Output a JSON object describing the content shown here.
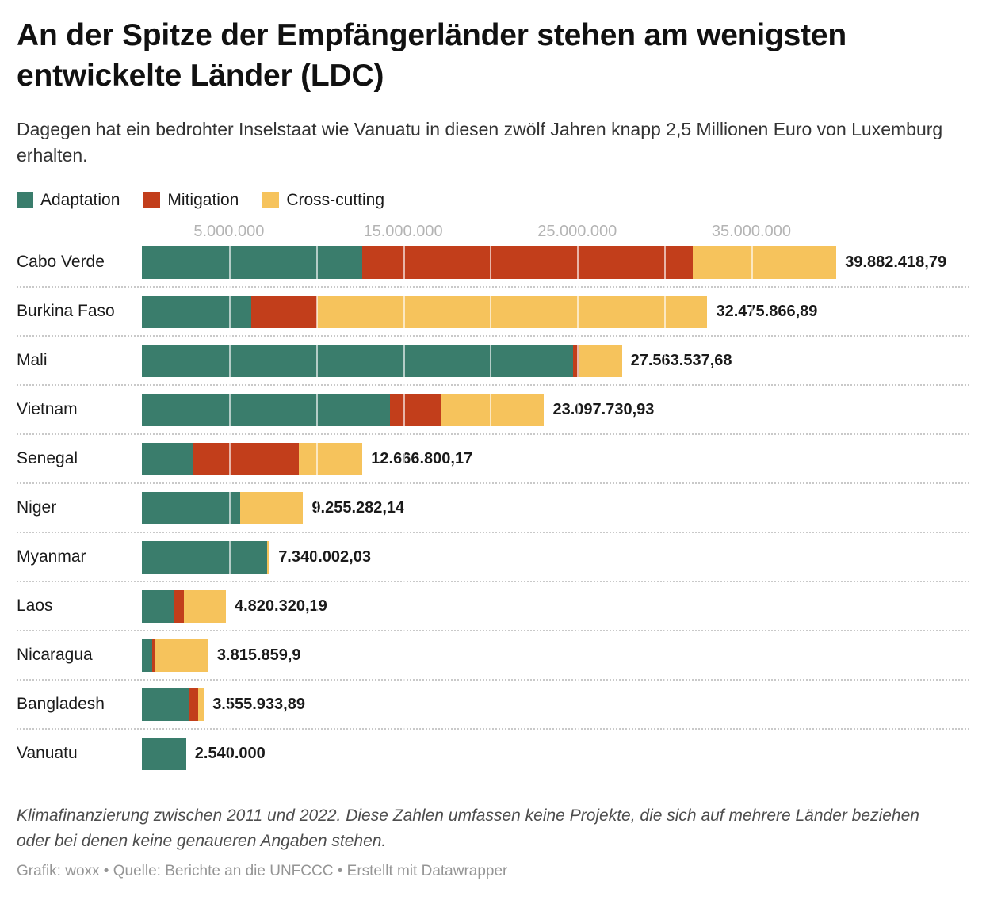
{
  "header": {
    "title": "An der Spitze der Empfängerländer stehen am wenigsten entwickelte Länder (LDC)",
    "subtitle": "Dagegen hat ein bedrohter Inselstaat wie Vanuatu in diesen zwölf Jahren knapp 2,5 Millionen Euro von Luxemburg erhalten."
  },
  "legend": {
    "items": [
      {
        "id": "adaptation",
        "label": "Adaptation",
        "color": "#3A7D6C"
      },
      {
        "id": "mitigation",
        "label": "Mitigation",
        "color": "#C23E1B"
      },
      {
        "id": "cross_cutting",
        "label": "Cross-cutting",
        "color": "#F6C35C"
      }
    ]
  },
  "chart_data": {
    "type": "bar",
    "stacked": true,
    "orientation": "horizontal",
    "value_unit": "Euro",
    "xlim": [
      0,
      41500000
    ],
    "grid": true,
    "axis_ticks": [
      {
        "value": 5000000,
        "label": "5.000.000"
      },
      {
        "value": 15000000,
        "label": "15.000.000"
      },
      {
        "value": 25000000,
        "label": "25.000.000"
      },
      {
        "value": 35000000,
        "label": "35.000.000"
      }
    ],
    "gridline_values": [
      5000000,
      10000000,
      15000000,
      20000000,
      25000000,
      30000000,
      35000000,
      40000000
    ],
    "series_names": [
      "Adaptation",
      "Mitigation",
      "Cross-cutting"
    ],
    "rows": [
      {
        "country": "Cabo Verde",
        "total": 39882418.79,
        "total_label": "39.882.418,79",
        "values": {
          "adaptation": 12650000,
          "mitigation": 18980000,
          "cross_cutting": 8252418.79
        }
      },
      {
        "country": "Burkina Faso",
        "total": 32475866.89,
        "total_label": "32.475.866,89",
        "values": {
          "adaptation": 6280000,
          "mitigation": 3760000,
          "cross_cutting": 22435866.89
        }
      },
      {
        "country": "Mali",
        "total": 27563537.68,
        "total_label": "27.563.537,68",
        "values": {
          "adaptation": 24760000,
          "mitigation": 370000,
          "cross_cutting": 2433537.68
        }
      },
      {
        "country": "Vietnam",
        "total": 23097730.93,
        "total_label": "23.097.730,93",
        "values": {
          "adaptation": 14240000,
          "mitigation": 2950000,
          "cross_cutting": 5907730.93
        }
      },
      {
        "country": "Senegal",
        "total": 12666800.17,
        "total_label": "12.666.800,17",
        "values": {
          "adaptation": 2890000,
          "mitigation": 6100000,
          "cross_cutting": 3676800.17
        }
      },
      {
        "country": "Niger",
        "total": 9255282.14,
        "total_label": "9.255.282,14",
        "values": {
          "adaptation": 5620000,
          "mitigation": 0,
          "cross_cutting": 3635282.14
        }
      },
      {
        "country": "Myanmar",
        "total": 7340002.03,
        "total_label": "7.340.002,03",
        "values": {
          "adaptation": 7180000,
          "mitigation": 0,
          "cross_cutting": 160002.03
        }
      },
      {
        "country": "Laos",
        "total": 4820320.19,
        "total_label": "4.820.320,19",
        "values": {
          "adaptation": 1810000,
          "mitigation": 600000,
          "cross_cutting": 2410320.19
        }
      },
      {
        "country": "Nicaragua",
        "total": 3815859.9,
        "total_label": "3.815.859,9",
        "values": {
          "adaptation": 590000,
          "mitigation": 140000,
          "cross_cutting": 3085859.9
        }
      },
      {
        "country": "Bangladesh",
        "total": 3555933.89,
        "total_label": "3.555.933,89",
        "values": {
          "adaptation": 2730000,
          "mitigation": 490000,
          "cross_cutting": 335933.89
        }
      },
      {
        "country": "Vanuatu",
        "total": 2540000,
        "total_label": "2.540.000",
        "values": {
          "adaptation": 2540000,
          "mitigation": 0,
          "cross_cutting": 0
        }
      }
    ]
  },
  "footer": {
    "note": "Klimafinanzierung zwischen 2011 und 2022. Diese Zahlen umfassen keine Projekte, die sich auf mehrere Länder beziehen oder bei denen keine genaueren Angaben stehen.",
    "credits": "Grafik: woxx • Quelle: Berichte an die UNFCCC • Erstellt mit Datawrapper"
  }
}
